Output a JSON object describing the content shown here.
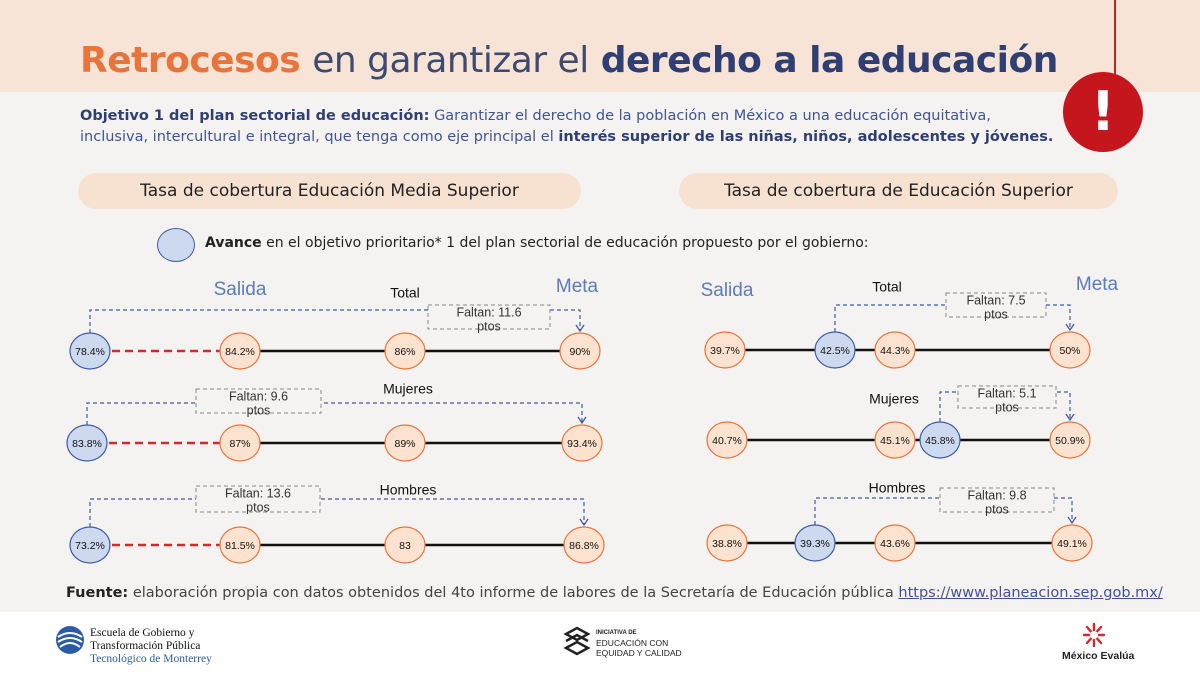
{
  "header": {
    "title_part1": "Retrocesos",
    "title_part2": "en garantizar el",
    "title_part3": "derecho a la educación",
    "alert_symbol": "!",
    "accent_color": "#e8743b",
    "navy_color": "#2f3f74"
  },
  "objective": {
    "label": "Objetivo 1 del plan sectorial de educación:",
    "text_before": "Garantizar el derecho de la población en México a una educación equitativa, inclusiva, intercultural e integral, que tenga como eje principal el",
    "highlight": "interés superior de las niñas, niños, adolescentes y jóvenes."
  },
  "panels": {
    "left_title": "Tasa de cobertura Educación Media Superior",
    "right_title": "Tasa de cobertura de Educación Superior"
  },
  "legend": {
    "bold": "Avance",
    "text": "en el objetivo prioritario* 1 del plan sectorial de educación propuesto por el gobierno:"
  },
  "chart_data": [
    {
      "type": "diagram",
      "panel": "Tasa de cobertura Educación Media Superior",
      "salida_label": "Salida",
      "meta_label": "Meta",
      "rows": [
        {
          "name": "Total",
          "avance": "78.4%",
          "nodes": [
            "84.2%",
            "86%",
            "90%"
          ],
          "faltan": "Faltan: 11.6 ptos"
        },
        {
          "name": "Mujeres",
          "avance": "83.8%",
          "nodes": [
            "87%",
            "89%",
            "93.4%"
          ],
          "faltan": "Faltan: 9.6 ptos"
        },
        {
          "name": "Hombres",
          "avance": "73.2%",
          "nodes": [
            "81.5%",
            "83",
            "86.8%"
          ],
          "faltan": "Faltan: 13.6 ptos"
        }
      ]
    },
    {
      "type": "diagram",
      "panel": "Tasa de cobertura de Educación Superior",
      "salida_label": "Salida",
      "meta_label": "Meta",
      "rows": [
        {
          "name": "Total",
          "avance": "42.5%",
          "nodes": [
            "39.7%",
            "44.3%",
            "50%"
          ],
          "faltan": "Faltan: 7.5 ptos"
        },
        {
          "name": "Mujeres",
          "avance": "45.8%",
          "nodes": [
            "40.7%",
            "45.1%",
            "50.9%"
          ],
          "faltan": "Faltan: 5.1 ptos"
        },
        {
          "name": "Hombres",
          "avance": "39.3%",
          "nodes": [
            "38.8%",
            "43.6%",
            "49.1%"
          ],
          "faltan": "Faltan: 9.8 ptos"
        }
      ]
    }
  ],
  "colors": {
    "node_fill": "#fde3cf",
    "node_stroke": "#e8743b",
    "avance_fill": "#cdd9ef",
    "avance_stroke": "#3d5ba8",
    "dashed_red": "#d6262e",
    "connector": "#3d5ba8"
  },
  "source": {
    "label": "Fuente:",
    "text": "elaboración propia con datos obtenidos del 4to informe de labores de la Secretaría de Educación pública",
    "link": "https://www.planeacion.sep.gob.mx/"
  },
  "footer": {
    "logo1_line1": "Escuela de Gobierno y",
    "logo1_line2": "Transformación Pública",
    "logo1_line3": "Tecnológico de Monterrey",
    "logo2_line1": "INICIATIVA DE",
    "logo2_line2": "EDUCACIÓN CON",
    "logo2_line3": "EQUIDAD Y CALIDAD",
    "logo3_text": "México Evalúa"
  }
}
